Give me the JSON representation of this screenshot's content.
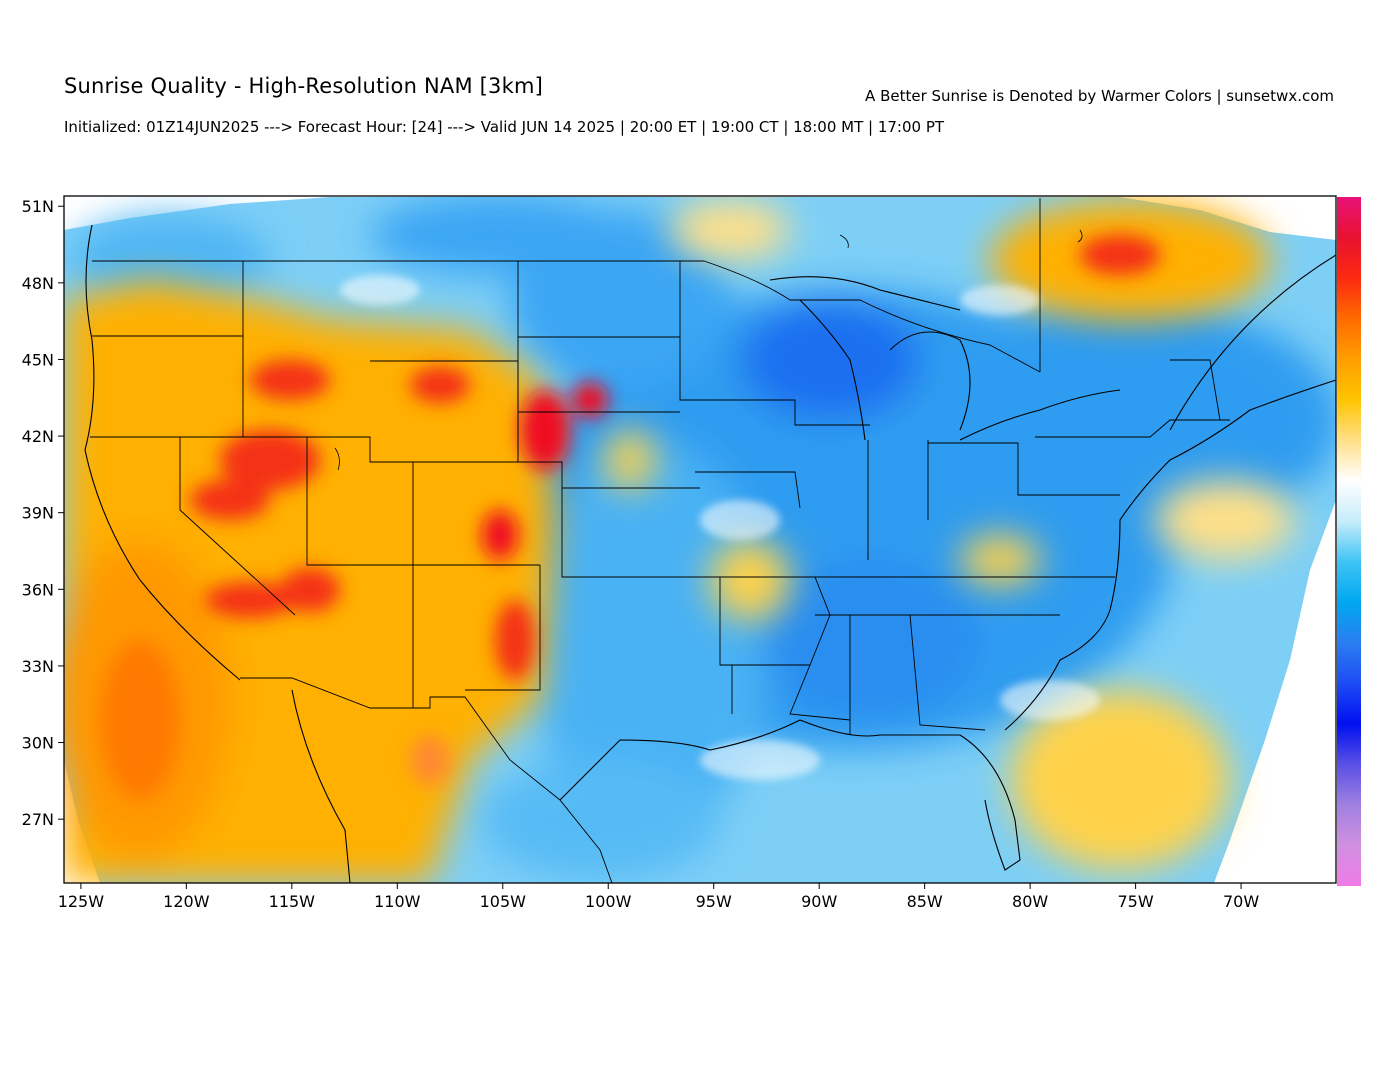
{
  "header": {
    "title": "Sunrise Quality - High-Resolution NAM [3km]",
    "tagline": "A Better Sunrise is Denoted by Warmer Colors | sunsetwx.com",
    "subtitle": "Initialized: 01Z14JUN2025 ---> Forecast Hour: [24] ---> Valid JUN 14 2025 | 20:00 ET | 19:00 CT | 18:00 MT | 17:00 PT"
  },
  "map": {
    "lon_range": [
      -125.8,
      -65.5
    ],
    "lat_range": [
      24.5,
      51.4
    ],
    "lat_ticks": [
      {
        "value": 51,
        "label": "51N"
      },
      {
        "value": 48,
        "label": "48N"
      },
      {
        "value": 45,
        "label": "45N"
      },
      {
        "value": 42,
        "label": "42N"
      },
      {
        "value": 39,
        "label": "39N"
      },
      {
        "value": 36,
        "label": "36N"
      },
      {
        "value": 33,
        "label": "33N"
      },
      {
        "value": 30,
        "label": "30N"
      },
      {
        "value": 27,
        "label": "27N"
      }
    ],
    "lon_ticks": [
      {
        "value": -125,
        "label": "125W"
      },
      {
        "value": -120,
        "label": "120W"
      },
      {
        "value": -115,
        "label": "115W"
      },
      {
        "value": -110,
        "label": "110W"
      },
      {
        "value": -105,
        "label": "105W"
      },
      {
        "value": -100,
        "label": "100W"
      },
      {
        "value": -95,
        "label": "95W"
      },
      {
        "value": -90,
        "label": "90W"
      },
      {
        "value": -85,
        "label": "85W"
      },
      {
        "value": -80,
        "label": "80W"
      },
      {
        "value": -75,
        "label": "75W"
      },
      {
        "value": -70,
        "label": "70W"
      }
    ],
    "colorbar_colors": [
      "#e8127a",
      "#e81230",
      "#fb2a10",
      "#ff6a00",
      "#ff9e00",
      "#ffc400",
      "#ffe088",
      "#ffffff",
      "#c6ecfa",
      "#3fc4f6",
      "#00a8f0",
      "#2a7ef0",
      "#1d4cf5",
      "#0010f0",
      "#5a50e6",
      "#a080e0",
      "#d090e0",
      "#f07ae8"
    ],
    "palette": {
      "land_blue": "#2f9cf0",
      "land_lightblue": "#8fd6f8",
      "warm_orange": "#ffb000",
      "warm_yellow": "#ffd24a",
      "hot_red": "#f02a20"
    }
  }
}
